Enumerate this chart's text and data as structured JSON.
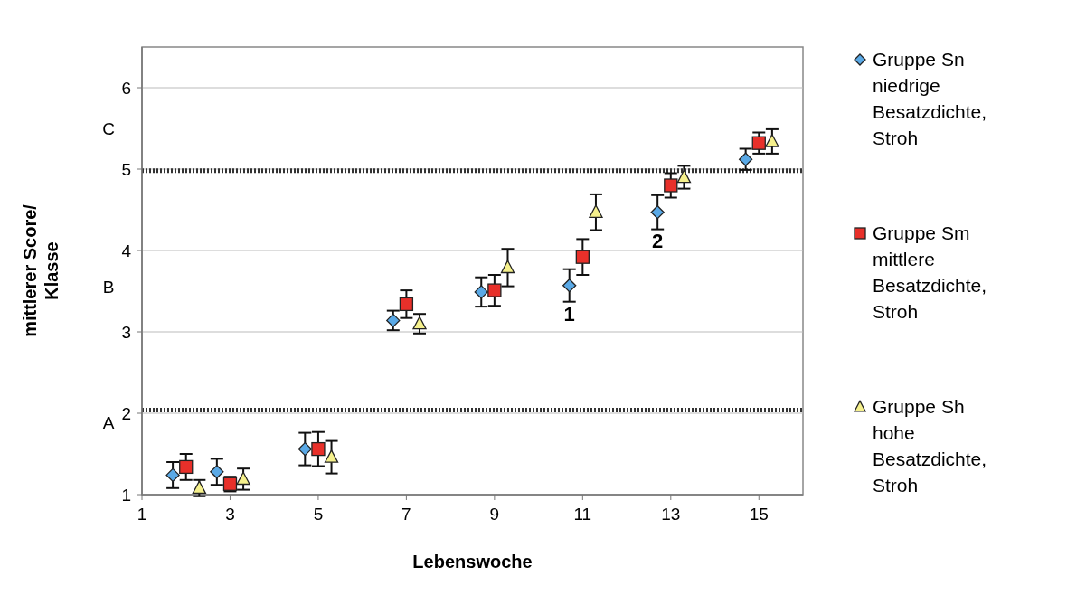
{
  "chart_data": {
    "type": "scatter",
    "xlabel": "Lebenswoche",
    "ylabel": "mittlerer Score/ Klasse",
    "xlim": [
      1,
      16
    ],
    "xticks": [
      1,
      3,
      5,
      7,
      9,
      11,
      13,
      15
    ],
    "ylim": [
      1,
      6.5
    ],
    "yticks": [
      1,
      2,
      3,
      4,
      5,
      6
    ],
    "grid": "y",
    "legend": "right",
    "series": [
      {
        "name": "Gruppe Sn niedrige Besatzdichte, Stroh",
        "color": "#5aa9e6",
        "marker": "diamond",
        "x": [
          1.7,
          2.7,
          4.7,
          6.7,
          8.7,
          10.7,
          12.7,
          14.7
        ],
        "values": [
          1.24,
          1.28,
          1.56,
          3.14,
          3.49,
          3.57,
          4.47,
          5.12
        ],
        "errors": [
          0.16,
          0.16,
          0.2,
          0.12,
          0.18,
          0.2,
          0.21,
          0.13
        ]
      },
      {
        "name": "Gruppe Sm mittlere Besatzdichte, Stroh",
        "color": "#e8302a",
        "marker": "square",
        "x": [
          2,
          3,
          5,
          7,
          9,
          11,
          13,
          15
        ],
        "values": [
          1.34,
          1.13,
          1.56,
          3.34,
          3.51,
          3.92,
          4.8,
          5.32
        ],
        "errors": [
          0.16,
          0.09,
          0.21,
          0.17,
          0.19,
          0.22,
          0.15,
          0.13
        ]
      },
      {
        "name": "Gruppe Sh hohe Besatzdichte, Stroh",
        "color": "#f5f08c",
        "marker": "triangle",
        "x": [
          2.3,
          3.3,
          5.3,
          7.3,
          9.3,
          11.3,
          13.3,
          15.3
        ],
        "values": [
          1.08,
          1.19,
          1.46,
          3.1,
          3.79,
          4.47,
          4.9,
          5.34
        ],
        "errors": [
          0.1,
          0.13,
          0.2,
          0.12,
          0.23,
          0.22,
          0.14,
          0.15
        ]
      }
    ],
    "ref_lines": [
      {
        "axis": "y",
        "value": 4.98,
        "line_style": "dotted",
        "color": "#333333"
      },
      {
        "axis": "y",
        "value": 2.04,
        "line_style": "dotted",
        "color": "#333333"
      }
    ],
    "annotations": [
      "A",
      "B",
      "C",
      {
        "text": "1",
        "x": 10.7,
        "y": 3.57
      },
      {
        "text": "2",
        "x": 12.7,
        "y": 4.47
      }
    ]
  }
}
